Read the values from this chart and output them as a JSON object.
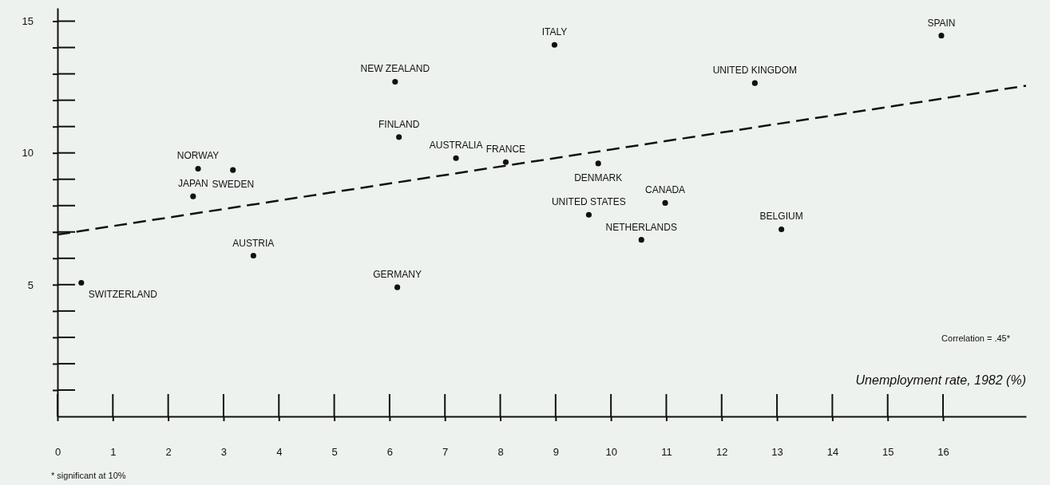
{
  "chart_data": {
    "type": "scatter",
    "xlabel": "Unemployment rate, 1982 (%)",
    "grid": false,
    "xlim": [
      0,
      17.5
    ],
    "ylim": [
      0,
      15.5
    ],
    "xticks": [
      0,
      1,
      2,
      3,
      4,
      5,
      6,
      7,
      8,
      9,
      10,
      11,
      12,
      13,
      14,
      15,
      16
    ],
    "yticks": [
      {
        "value": 1,
        "label": null
      },
      {
        "value": 2,
        "label": null
      },
      {
        "value": 3,
        "label": null
      },
      {
        "value": 4,
        "label": null
      },
      5,
      {
        "value": 6,
        "label": null
      },
      {
        "value": 7,
        "label": null
      },
      {
        "value": 8,
        "label": null
      },
      {
        "value": 9,
        "label": null
      },
      10,
      {
        "value": 11,
        "label": null
      },
      {
        "value": 12,
        "label": null
      },
      {
        "value": 13,
        "label": null
      },
      {
        "value": 14,
        "label": null
      },
      15
    ],
    "series": [
      {
        "color": "#111111",
        "x": [
          0.43,
          2.45,
          2.54,
          3.17,
          3.54,
          6.1,
          6.17,
          6.14,
          7.2,
          8.1,
          8.98,
          9.6,
          9.77,
          10.98,
          10.55,
          12.6,
          13.08,
          15.97
        ],
        "marker": "circle",
        "values": [
          5.07,
          8.35,
          9.4,
          9.35,
          6.1,
          12.7,
          10.6,
          4.9,
          9.8,
          9.65,
          14.1,
          7.65,
          9.6,
          8.1,
          6.7,
          12.65,
          7.1,
          14.45
        ]
      },
      {
        "type": "line",
        "color": "#111111",
        "line_style": "dashed",
        "marker": "none",
        "x": [
          0,
          17.5
        ],
        "values": [
          6.9,
          12.55
        ]
      }
    ],
    "annotations": [
      {
        "text": "SWITZERLAND",
        "x": 0.43,
        "y": 5.07
      },
      {
        "text": "JAPAN",
        "x": 2.45,
        "y": 8.35
      },
      {
        "text": "NORWAY",
        "x": 2.54,
        "y": 9.4
      },
      {
        "text": "SWEDEN",
        "x": 3.17,
        "y": 9.35
      },
      {
        "text": "AUSTRIA",
        "x": 3.54,
        "y": 6.1
      },
      {
        "text": "NEW ZEALAND",
        "x": 6.1,
        "y": 12.7
      },
      {
        "text": "FINLAND",
        "x": 6.17,
        "y": 10.6
      },
      {
        "text": "GERMANY",
        "x": 6.14,
        "y": 4.9
      },
      {
        "text": "AUSTRALIA",
        "x": 7.2,
        "y": 9.8
      },
      {
        "text": "FRANCE",
        "x": 8.1,
        "y": 9.65
      },
      {
        "text": "ITALY",
        "x": 8.98,
        "y": 14.1
      },
      {
        "text": "UNITED STATES",
        "x": 9.6,
        "y": 7.65
      },
      {
        "text": "DENMARK",
        "x": 9.77,
        "y": 9.6
      },
      {
        "text": "CANADA",
        "x": 10.98,
        "y": 8.1
      },
      {
        "text": "NETHERLANDS",
        "x": 10.55,
        "y": 6.7
      },
      {
        "text": "UNITED KINGDOM",
        "x": 12.6,
        "y": 12.65
      },
      {
        "text": "BELGIUM",
        "x": 13.08,
        "y": 7.1
      },
      {
        "text": "SPAIN",
        "x": 15.97,
        "y": 14.45
      },
      "Correlation = .45*",
      "* significant at 10%"
    ]
  }
}
